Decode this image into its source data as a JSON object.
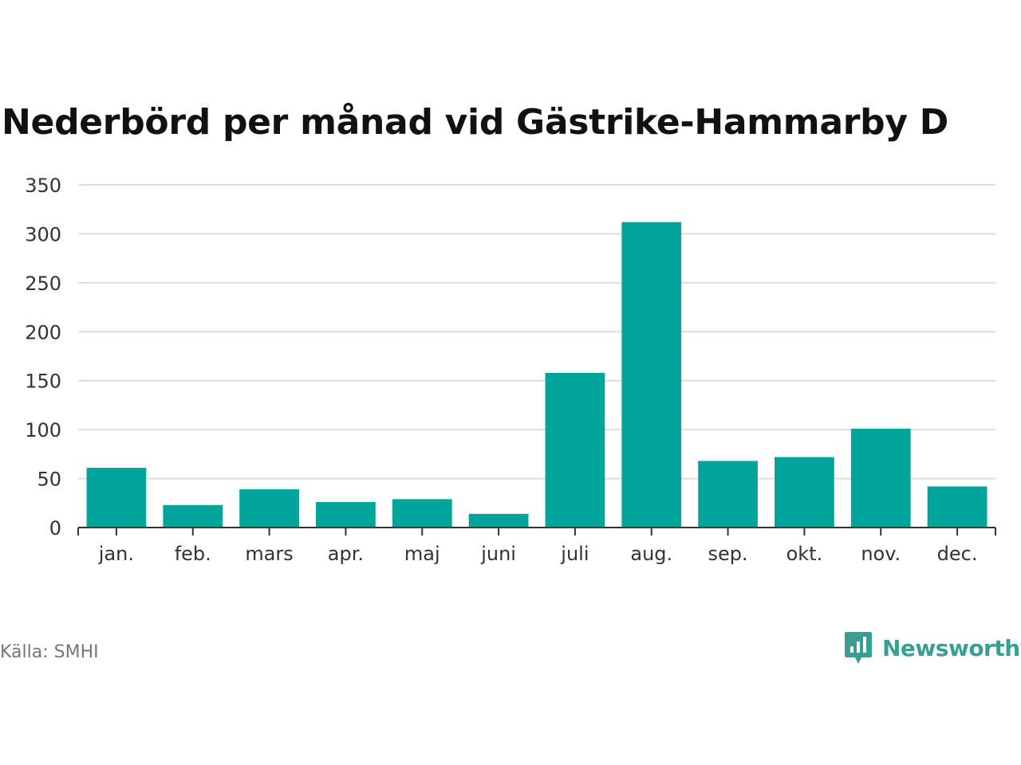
{
  "page": {
    "title": "Nederbörd per månad vid Gästrike-Hammarby D",
    "source": "Källa: SMHI",
    "brand": "Newsworthy",
    "brand_icon": "newsworthy-logo-icon"
  },
  "colors": {
    "bar": "#00a499",
    "grid": "#dddddd",
    "axis": "#333333",
    "brand": "#3a9e93"
  },
  "chart_data": {
    "type": "bar",
    "title": "Nederbörd per månad vid Gästrike-Hammarby D",
    "xlabel": "",
    "ylabel": "",
    "categories": [
      "jan.",
      "feb.",
      "mars",
      "apr.",
      "maj",
      "juni",
      "juli",
      "aug.",
      "sep.",
      "okt.",
      "nov.",
      "dec."
    ],
    "values": [
      61,
      23,
      39,
      26,
      29,
      14,
      158,
      312,
      68,
      72,
      101,
      42
    ],
    "ylim": [
      0,
      350
    ],
    "yticks": [
      0,
      50,
      100,
      150,
      200,
      250,
      300,
      350
    ],
    "grid": true,
    "legend": "none"
  }
}
